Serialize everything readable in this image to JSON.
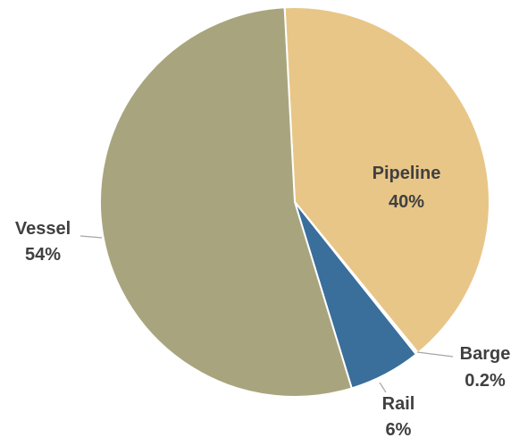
{
  "chart_data": {
    "type": "pie",
    "title": "",
    "slices": [
      {
        "label": "Pipeline",
        "value": 40,
        "value_text": "40%",
        "color": "#E8C688",
        "label_color": "#404040"
      },
      {
        "label": "Barge",
        "value": 0.2,
        "value_text": "0.2%",
        "color": "#F2F2F2",
        "label_color": "#404040"
      },
      {
        "label": "Rail",
        "value": 6,
        "value_text": "6%",
        "color": "#3A6E9B",
        "label_color": "#404040"
      },
      {
        "label": "Vessel",
        "value": 54,
        "value_text": "54%",
        "color": "#A8A57E",
        "label_color": "#404040"
      }
    ],
    "start_angle_deg": -3,
    "direction": "clockwise",
    "label_style": "name and percent, bold, dark gray",
    "legend": "none"
  }
}
